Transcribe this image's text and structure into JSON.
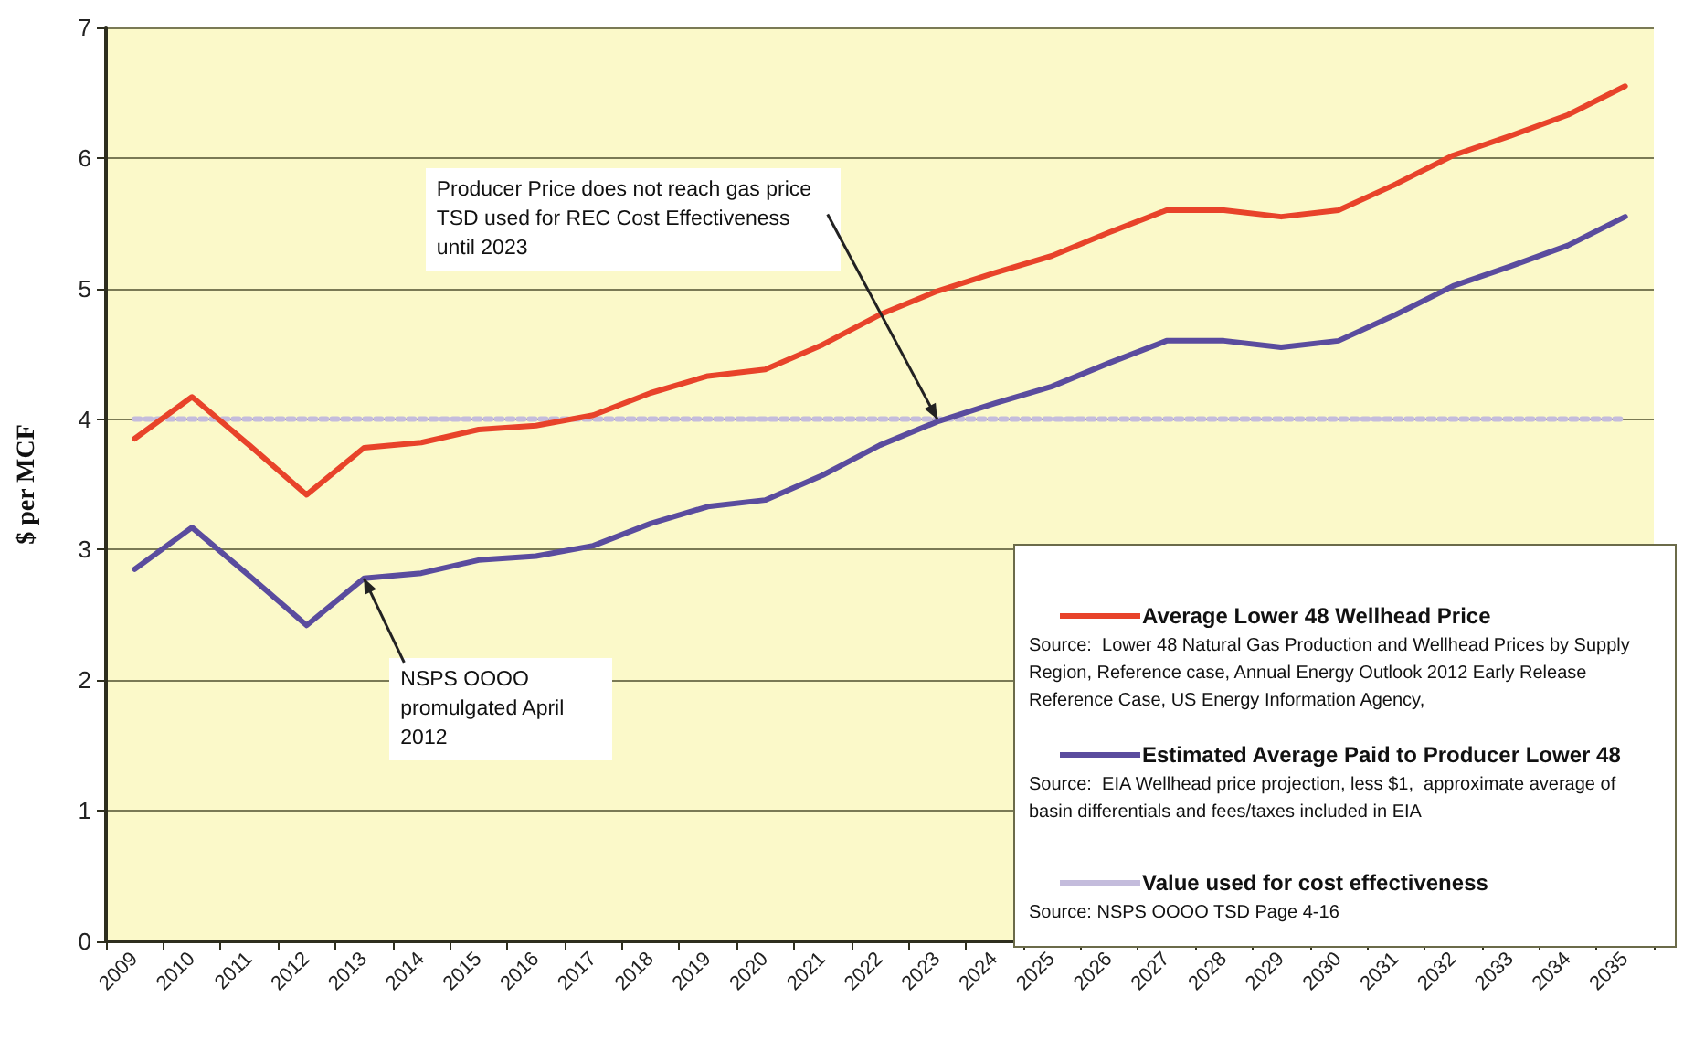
{
  "chart_data": {
    "type": "line",
    "ylabel": "$ per MCF",
    "categories": [
      "2009",
      "2010",
      "2011",
      "2012",
      "2013",
      "2014",
      "2015",
      "2016",
      "2017",
      "2018",
      "2019",
      "2020",
      "2021",
      "2022",
      "2023",
      "2024",
      "2025",
      "2026",
      "2027",
      "2028",
      "2029",
      "2030",
      "2031",
      "2032",
      "2033",
      "2034",
      "2035"
    ],
    "series": [
      {
        "name": "Average Lower 48 Wellhead Price",
        "color": "#e8432a",
        "values": [
          3.85,
          4.17,
          3.8,
          3.42,
          3.78,
          3.82,
          3.92,
          3.95,
          4.03,
          4.2,
          4.33,
          4.38,
          4.57,
          4.8,
          4.98,
          5.12,
          5.25,
          5.43,
          5.6,
          5.6,
          5.55,
          5.6,
          5.8,
          6.02,
          6.17,
          6.33,
          6.55
        ]
      },
      {
        "name": "Estimated Average Paid to Producer Lower 48",
        "color": "#5a4c9e",
        "values": [
          2.85,
          3.17,
          2.8,
          2.42,
          2.78,
          2.82,
          2.92,
          2.95,
          3.03,
          3.2,
          3.33,
          3.38,
          3.57,
          3.8,
          3.98,
          4.12,
          4.25,
          4.43,
          4.6,
          4.6,
          4.55,
          4.6,
          4.8,
          5.02,
          5.17,
          5.33,
          5.55
        ]
      },
      {
        "name": "Value used for cost effectiveness",
        "color": "#c4bcdc",
        "line_style": "dotted",
        "values": [
          4,
          4,
          4,
          4,
          4,
          4,
          4,
          4,
          4,
          4,
          4,
          4,
          4,
          4,
          4,
          4,
          4,
          4,
          4,
          4,
          4,
          4,
          4,
          4,
          4,
          4,
          4
        ]
      }
    ],
    "ylim": [
      0,
      7
    ],
    "yticks": [
      0,
      1,
      2,
      3,
      4,
      5,
      6,
      7
    ],
    "grid": "y",
    "legend": "bottom right",
    "marker": "none",
    "line_style": "solid",
    "annotations": [
      {
        "text": "Producer Price does not reach gas price TSD used for REC Cost Effectiveness until 2023",
        "x": "2023",
        "y": 4
      },
      {
        "text": "NSPS OOOO promulgated April 2012",
        "x": "2013",
        "y": 2.78
      },
      "Source:  Lower 48 Natural Gas Production and Wellhead Prices by Supply Region, Reference case, Annual Energy Outlook 2012 Early Release Reference Case, US Energy Information Agency,",
      "Source:  EIA Wellhead price projection, less $1,  approximate average of basin differentials and fees/taxes included in EIA",
      "Source: NSPS OOOO TSD Page 4-16"
    ]
  }
}
